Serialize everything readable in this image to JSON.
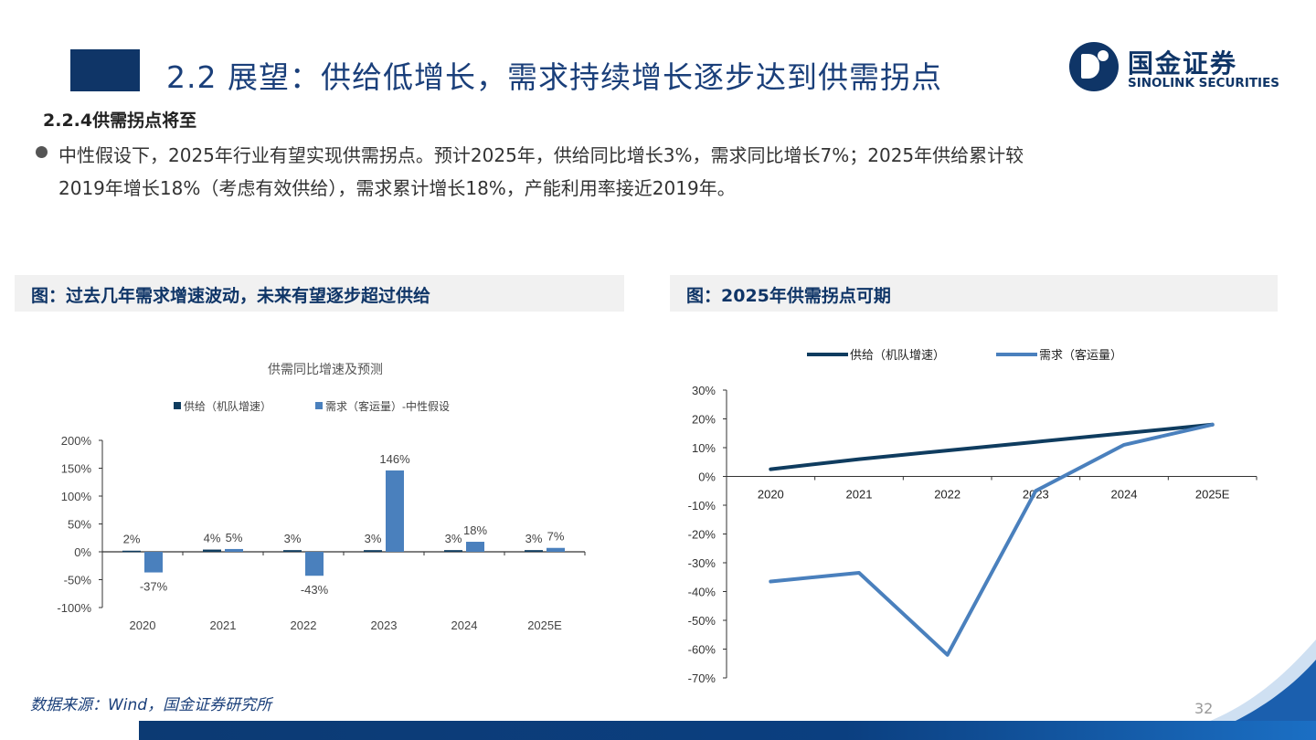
{
  "header": {
    "title": "2.2 展望：供给低增长，需求持续增长逐步达到供需拐点",
    "logo_cn": "国金证券",
    "logo_en": "SINOLINK SECURITIES"
  },
  "section_heading": "2.2.4供需拐点将至",
  "bullet": {
    "line1": "中性假设下，2025年行业有望实现供需拐点。预计2025年，供给同比增长3%，需求同比增长7%；2025年供给累计较",
    "line2": "2019年增长18%（考虑有效供给），需求累计增长18%，产能利用率接近2019年。"
  },
  "figures": {
    "left_title": "图：过去几年需求增速波动，未来有望逐步超过供给",
    "right_title": "图：2025年供需拐点可期"
  },
  "footer": {
    "source": "数据来源：Wind，国金证券研究所",
    "page_number": "32"
  },
  "colors": {
    "supply": "#0f3c5f",
    "demand": "#4a80bd",
    "title_blue": "#0f3567"
  },
  "chart_data": [
    {
      "type": "bar",
      "title": "供需同比增速及预测",
      "categories": [
        "2020",
        "2021",
        "2022",
        "2023",
        "2024",
        "2025E"
      ],
      "series": [
        {
          "name": "供给（机队增速）",
          "values": [
            2,
            4,
            3,
            3,
            3,
            3
          ],
          "labels": [
            "2%",
            "4%",
            "3%",
            "3%",
            "3%",
            "3%"
          ]
        },
        {
          "name": "需求（客运量）-中性假设",
          "values": [
            -37,
            5,
            -43,
            146,
            18,
            7
          ],
          "labels": [
            "-37%",
            "5%",
            "-43%",
            "146%",
            "18%",
            "7%"
          ]
        }
      ],
      "ylim": [
        -100,
        200
      ],
      "yticks": [
        "200%",
        "150%",
        "100%",
        "50%",
        "0%",
        "-50%",
        "-100%"
      ],
      "ytick_values": [
        200,
        150,
        100,
        50,
        0,
        -50,
        -100
      ],
      "legend": "top",
      "grid": false
    },
    {
      "type": "line",
      "title": "",
      "categories": [
        "2020",
        "2021",
        "2022",
        "2023",
        "2024",
        "2025E"
      ],
      "series": [
        {
          "name": "供给（机队增速）",
          "values": [
            2.5,
            6,
            9,
            12,
            15,
            18
          ]
        },
        {
          "name": "需求（客运量）",
          "values": [
            -36.5,
            -33.5,
            -62,
            -5,
            11,
            18
          ]
        }
      ],
      "ylim": [
        -70,
        30
      ],
      "yticks": [
        "30%",
        "20%",
        "10%",
        "0%",
        "-10%",
        "-20%",
        "-30%",
        "-40%",
        "-50%",
        "-60%",
        "-70%"
      ],
      "ytick_values": [
        30,
        20,
        10,
        0,
        -10,
        -20,
        -30,
        -40,
        -50,
        -60,
        -70
      ],
      "legend": "top",
      "grid": false
    }
  ]
}
